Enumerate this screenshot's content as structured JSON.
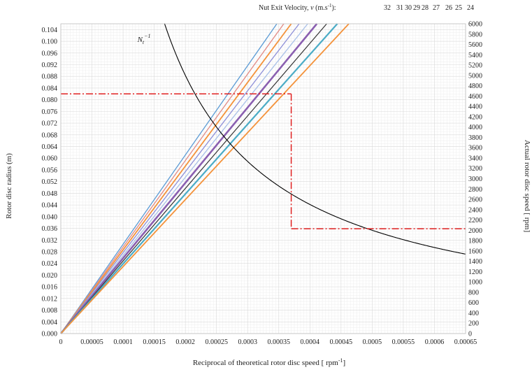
{
  "chart_data": {
    "type": "line",
    "title": "",
    "xlabel": "Reciprocal of theoretical rotor disc speed  [ rpm",
    "xlabel_sup": "-1",
    "xlabel_end": "]",
    "ylabel": "Rotor disc radius (m)",
    "y2label": "Actual rotor disc speed [ rpm]",
    "xlim": [
      0,
      0.00065
    ],
    "ylim": [
      0,
      0.106
    ],
    "y2lim": [
      0,
      6000
    ],
    "x_ticks": [
      "0",
      "0.00005",
      "0.0001",
      "0.00015",
      "0.0002",
      "0.00025",
      "0.0003",
      "0.00035",
      "0.0004",
      "0.00045",
      "0.0005",
      "0.00055",
      "0.0006",
      "0.00065"
    ],
    "y_ticks": [
      "0.000",
      "0.004",
      "0.008",
      "0.012",
      "0.016",
      "0.020",
      "0.024",
      "0.028",
      "0.032",
      "0.036",
      "0.040",
      "0.044",
      "0.048",
      "0.052",
      "0.056",
      "0.060",
      "0.064",
      "0.068",
      "0.072",
      "0.076",
      "0.080",
      "0.084",
      "0.088",
      "0.092",
      "0.096",
      "0.100",
      "0.104"
    ],
    "y2_ticks": [
      "0",
      "200",
      "400",
      "600",
      "800",
      "1000",
      "1200",
      "1400",
      "1600",
      "1800",
      "2000",
      "2200",
      "2400",
      "2600",
      "2800",
      "3000",
      "3200",
      "3400",
      "3600",
      "3800",
      "4000",
      "4200",
      "4400",
      "4600",
      "4800",
      "5000",
      "5200",
      "5400",
      "5600",
      "5800",
      "6000"
    ],
    "grid": true,
    "legend": {
      "prefix": "Nut Exit Velocity, ",
      "var": "v",
      "unit_a": " (m.s",
      "unit_sup": "-1",
      "unit_b": "):",
      "labels": [
        "32",
        "31",
        "30",
        "29",
        "28",
        "27",
        "26",
        "25",
        "24"
      ]
    },
    "velocity_lines": [
      {
        "v": 32,
        "color": "#5b9bd5",
        "width": 1.3
      },
      {
        "v": 31,
        "color": "#e28a84",
        "width": 1.3
      },
      {
        "v": 30,
        "color": "#f4923a",
        "width": 1.8
      },
      {
        "v": 29,
        "color": "#8d8fd8",
        "width": 1.3
      },
      {
        "v": 28,
        "color": "#a8c0e8",
        "width": 1.3
      },
      {
        "v": 27,
        "color": "#8a5fb0",
        "width": 2.6
      },
      {
        "v": 26,
        "color": "#333333",
        "width": 1.2
      },
      {
        "v": 25,
        "color": "#4bacc6",
        "width": 2.2
      },
      {
        "v": 24,
        "color": "#f4923a",
        "width": 1.8
      }
    ],
    "curve": {
      "label": "N",
      "label_sub": "t",
      "label_sup": "−1",
      "axis": "y2",
      "relation": "y2 = 1 / x",
      "color": "#000000"
    },
    "annotation": {
      "color": "#e02020",
      "x": 0.00037,
      "y": 0.082,
      "y2": 2030
    }
  }
}
